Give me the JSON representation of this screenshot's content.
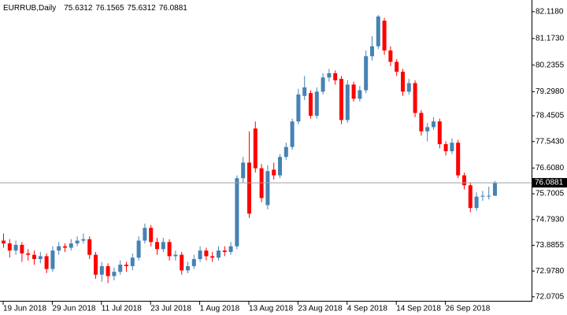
{
  "chart_data": {
    "type": "candlestick",
    "symbol": "EURRUB,Daily",
    "categories": [
      "19 Jun 2018",
      null,
      null,
      null,
      null,
      null,
      null,
      null,
      "29 Jun 2018",
      null,
      null,
      null,
      null,
      null,
      null,
      null,
      "11 Jul 2018",
      null,
      null,
      null,
      null,
      null,
      null,
      null,
      "23 Jul 2018",
      null,
      null,
      null,
      null,
      null,
      null,
      null,
      "1 Aug 2018",
      null,
      null,
      null,
      null,
      null,
      null,
      null,
      "13 Aug 2018",
      null,
      null,
      null,
      null,
      null,
      null,
      null,
      "23 Aug 2018",
      null,
      null,
      null,
      null,
      null,
      null,
      null,
      "4 Sep 2018",
      null,
      null,
      null,
      null,
      null,
      null,
      null,
      "14 Sep 2018",
      null,
      null,
      null,
      null,
      null,
      null,
      null,
      "26 Sep 2018",
      null,
      null,
      null,
      null,
      null,
      null,
      null,
      null
    ],
    "open": [
      74.05,
      73.95,
      73.7,
      73.9,
      73.6,
      73.55,
      73.4,
      73.5,
      73.05,
      73.7,
      73.85,
      73.8,
      73.95,
      74.05,
      74.1,
      73.55,
      72.85,
      73.15,
      72.8,
      72.95,
      73.2,
      73.15,
      73.45,
      74.05,
      74.5,
      74.0,
      73.75,
      74.0,
      73.5,
      73.55,
      73.0,
      73.15,
      73.4,
      73.7,
      73.5,
      73.45,
      73.7,
      73.65,
      73.85,
      76.25,
      76.8,
      78.0,
      76.6,
      75.3,
      76.55,
      76.35,
      77.0,
      77.35,
      78.25,
      79.15,
      79.25,
      78.45,
      79.3,
      79.8,
      79.95,
      79.75,
      78.3,
      79.55,
      79.05,
      79.35,
      80.55,
      80.9,
      81.8,
      80.75,
      80.35,
      80.0,
      79.3,
      79.6,
      78.55,
      77.9,
      78.05,
      78.25,
      77.45,
      77.2,
      77.5,
      76.35,
      76.0,
      75.2,
      75.6,
      75.63,
      75.6312
    ],
    "high": [
      74.3,
      74.1,
      74.05,
      74.0,
      73.75,
      73.7,
      73.65,
      73.6,
      73.85,
      74.0,
      73.95,
      74.1,
      74.2,
      74.3,
      74.2,
      73.65,
      73.3,
      73.25,
      73.1,
      73.35,
      73.3,
      73.6,
      74.2,
      74.65,
      74.6,
      74.15,
      74.15,
      74.1,
      73.7,
      73.65,
      73.3,
      73.55,
      73.85,
      73.8,
      73.65,
      73.85,
      73.85,
      74.0,
      76.35,
      77.0,
      77.9,
      78.25,
      76.75,
      76.7,
      76.8,
      77.1,
      77.5,
      78.35,
      79.4,
      79.85,
      79.35,
      79.45,
      79.95,
      80.1,
      80.05,
      79.85,
      79.7,
      79.65,
      79.5,
      80.75,
      81.25,
      82.0,
      81.9,
      80.9,
      80.45,
      80.1,
      79.75,
      79.7,
      78.65,
      78.2,
      78.4,
      78.35,
      77.55,
      77.65,
      77.6,
      76.45,
      76.1,
      75.75,
      75.8,
      75.95,
      76.1565
    ],
    "low": [
      73.8,
      73.45,
      73.55,
      73.3,
      73.35,
      73.2,
      73.25,
      72.9,
      72.95,
      73.55,
      73.65,
      73.7,
      73.85,
      73.95,
      73.4,
      72.7,
      72.6,
      72.55,
      72.65,
      72.85,
      72.95,
      73.0,
      73.35,
      73.95,
      73.85,
      73.55,
      73.65,
      73.35,
      73.35,
      72.85,
      72.9,
      73.05,
      73.3,
      73.35,
      73.3,
      73.35,
      73.5,
      73.55,
      73.75,
      76.1,
      74.85,
      76.45,
      75.4,
      75.15,
      76.2,
      76.25,
      76.9,
      77.25,
      78.15,
      79.0,
      78.35,
      78.35,
      79.2,
      79.65,
      79.55,
      78.15,
      78.2,
      78.95,
      78.95,
      79.25,
      80.4,
      80.8,
      80.6,
      80.2,
      79.85,
      79.15,
      79.2,
      78.4,
      77.75,
      77.55,
      77.95,
      77.3,
      77.05,
      77.1,
      76.25,
      75.85,
      75.05,
      75.1,
      75.45,
      75.5,
      75.6312
    ],
    "close": [
      73.95,
      73.7,
      73.9,
      73.6,
      73.55,
      73.4,
      73.5,
      73.05,
      73.7,
      73.85,
      73.8,
      73.95,
      74.05,
      74.1,
      73.55,
      72.85,
      73.15,
      72.8,
      72.95,
      73.2,
      73.15,
      73.45,
      74.05,
      74.5,
      74.0,
      73.75,
      74.0,
      73.5,
      73.55,
      73.0,
      73.15,
      73.4,
      73.7,
      73.5,
      73.45,
      73.7,
      73.65,
      73.85,
      76.25,
      76.8,
      75.0,
      76.6,
      75.55,
      76.5,
      76.35,
      77.0,
      77.35,
      78.25,
      79.2,
      79.45,
      78.45,
      79.3,
      79.8,
      79.95,
      79.7,
      78.3,
      79.55,
      79.05,
      79.35,
      80.55,
      80.9,
      81.95,
      80.75,
      80.35,
      80.0,
      79.3,
      79.6,
      78.55,
      77.9,
      78.05,
      78.25,
      77.45,
      77.2,
      77.5,
      76.35,
      76.0,
      75.2,
      75.6,
      75.63,
      75.63,
      76.0881
    ],
    "up_color": "#4682b4",
    "down_color": "#ff0000",
    "ylim": [
      71.9,
      82.53
    ],
    "yticks": [
      {
        "value": 82.118,
        "label": "82.1180"
      },
      {
        "value": 81.173,
        "label": "81.1730"
      },
      80.2355,
      {
        "value": 79.298,
        "label": "79.2980"
      },
      78.4505,
      {
        "value": 77.543,
        "label": "77.5430"
      },
      {
        "value": 76.608,
        "label": "76.6080"
      },
      75.7005,
      {
        "value": 74.793,
        "label": "74.7930"
      },
      73.8855,
      {
        "value": 72.978,
        "label": "72.9780"
      },
      72.0705
    ],
    "grid": false
  }
}
